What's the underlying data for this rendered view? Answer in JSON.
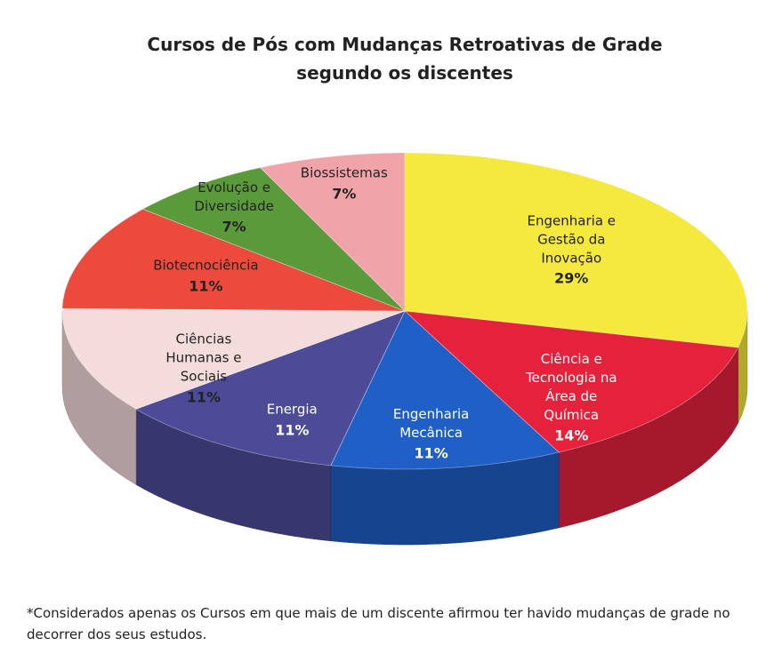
{
  "chart_data": {
    "type": "pie",
    "title": "Cursos de Pós com Mudanças Retroativas de Grade\nsegundo os discentes",
    "categories": [
      "Engenharia e\nGestão da\nInovação",
      "Ciência e\nTecnologia na\nÁrea de\nQuímica",
      "Engenharia\nMecânica",
      "Energia",
      "Ciências\nHumanas e\nSociais",
      "Biotecnociência",
      "Evolução e\nDiversidade",
      "Biossistemas"
    ],
    "values": [
      29,
      14,
      11,
      11,
      11,
      11,
      7,
      7
    ],
    "value_labels": [
      "29%",
      "14%",
      "11%",
      "11%",
      "11%",
      "11%",
      "7%",
      "7%"
    ],
    "colors": [
      "#f4e93c",
      "#e6213c",
      "#1f5fc6",
      "#4d4b98",
      "#f5dcdc",
      "#ec4a3c",
      "#5b9a3b",
      "#f1a3aa"
    ],
    "footnote": "*Considerados apenas os Cursos em que mais de um discente afirmou ter havido mudanças de grade no decorrer dos seus estudos."
  }
}
